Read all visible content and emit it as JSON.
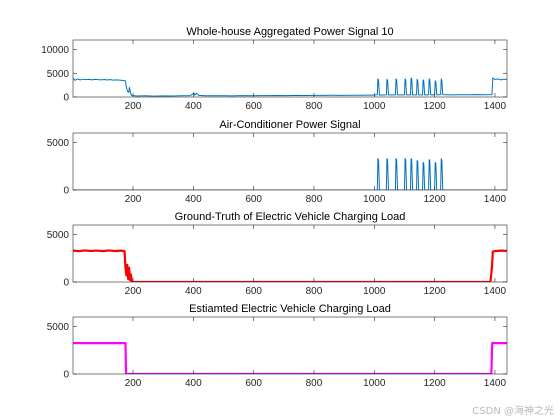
{
  "chart_data": [
    {
      "type": "line",
      "title": "Whole-house Aggregated Power Signal 10",
      "xlim": [
        1,
        1440
      ],
      "ylim": [
        0,
        12000
      ],
      "xticks": [
        200,
        400,
        600,
        800,
        1000,
        1200,
        1400
      ],
      "yticks": [
        0,
        5000,
        10000
      ],
      "grid": false,
      "series": [
        {
          "color": "#0072BD",
          "width": 1.0,
          "points": [
            [
              1,
              4000
            ],
            [
              8,
              3500
            ],
            [
              15,
              3800
            ],
            [
              25,
              3600
            ],
            [
              35,
              3750
            ],
            [
              45,
              3650
            ],
            [
              55,
              3700
            ],
            [
              65,
              3600
            ],
            [
              75,
              3720
            ],
            [
              85,
              3650
            ],
            [
              95,
              3600
            ],
            [
              105,
              3680
            ],
            [
              115,
              3580
            ],
            [
              125,
              3650
            ],
            [
              135,
              3560
            ],
            [
              145,
              3600
            ],
            [
              155,
              3550
            ],
            [
              165,
              3500
            ],
            [
              175,
              3400
            ],
            [
              178,
              2000
            ],
            [
              182,
              1200
            ],
            [
              186,
              1000
            ],
            [
              188,
              2000
            ],
            [
              192,
              800
            ],
            [
              195,
              400
            ],
            [
              200,
              300
            ],
            [
              215,
              200
            ],
            [
              240,
              260
            ],
            [
              270,
              180
            ],
            [
              300,
              240
            ],
            [
              330,
              200
            ],
            [
              360,
              260
            ],
            [
              390,
              300
            ],
            [
              400,
              700
            ],
            [
              402,
              900
            ],
            [
              404,
              400
            ],
            [
              410,
              800
            ],
            [
              418,
              350
            ],
            [
              440,
              260
            ],
            [
              470,
              250
            ],
            [
              500,
              270
            ],
            [
              530,
              240
            ],
            [
              560,
              280
            ],
            [
              590,
              260
            ],
            [
              620,
              300
            ],
            [
              650,
              280
            ],
            [
              680,
              320
            ],
            [
              710,
              300
            ],
            [
              740,
              330
            ],
            [
              770,
              310
            ],
            [
              800,
              340
            ],
            [
              830,
              330
            ],
            [
              860,
              360
            ],
            [
              890,
              350
            ],
            [
              920,
              380
            ],
            [
              950,
              360
            ],
            [
              980,
              400
            ],
            [
              1000,
              400
            ],
            [
              1010,
              500
            ],
            [
              1012,
              3800
            ],
            [
              1014,
              3600
            ],
            [
              1017,
              400
            ],
            [
              1040,
              450
            ],
            [
              1042,
              3700
            ],
            [
              1044,
              3500
            ],
            [
              1047,
              450
            ],
            [
              1070,
              450
            ],
            [
              1072,
              3800
            ],
            [
              1074,
              3600
            ],
            [
              1077,
              450
            ],
            [
              1100,
              450
            ],
            [
              1102,
              3800
            ],
            [
              1104,
              3600
            ],
            [
              1107,
              450
            ],
            [
              1120,
              450
            ],
            [
              1122,
              4000
            ],
            [
              1124,
              3800
            ],
            [
              1127,
              450
            ],
            [
              1140,
              450
            ],
            [
              1142,
              3700
            ],
            [
              1144,
              3500
            ],
            [
              1147,
              450
            ],
            [
              1160,
              450
            ],
            [
              1162,
              3600
            ],
            [
              1164,
              3400
            ],
            [
              1167,
              450
            ],
            [
              1180,
              450
            ],
            [
              1182,
              3800
            ],
            [
              1184,
              3600
            ],
            [
              1187,
              450
            ],
            [
              1200,
              450
            ],
            [
              1202,
              3400
            ],
            [
              1204,
              3200
            ],
            [
              1207,
              450
            ],
            [
              1220,
              500
            ],
            [
              1222,
              3800
            ],
            [
              1224,
              3500
            ],
            [
              1227,
              500
            ],
            [
              1250,
              450
            ],
            [
              1280,
              480
            ],
            [
              1310,
              460
            ],
            [
              1340,
              500
            ],
            [
              1370,
              480
            ],
            [
              1390,
              500
            ],
            [
              1393,
              4000
            ],
            [
              1400,
              3700
            ],
            [
              1410,
              3800
            ],
            [
              1420,
              3600
            ],
            [
              1430,
              3750
            ],
            [
              1440,
              3700
            ]
          ]
        }
      ]
    },
    {
      "type": "line",
      "title": "Air-Conditioner Power Signal",
      "xlim": [
        1,
        1440
      ],
      "ylim": [
        0,
        6000
      ],
      "xticks": [
        200,
        400,
        600,
        800,
        1000,
        1200,
        1400
      ],
      "yticks": [
        0,
        5000
      ],
      "grid": false,
      "series": [
        {
          "color": "#0072BD",
          "width": 1.0,
          "points": [
            [
              1,
              0
            ],
            [
              1010,
              0
            ],
            [
              1012,
              3300
            ],
            [
              1014,
              3200
            ],
            [
              1017,
              0
            ],
            [
              1040,
              0
            ],
            [
              1042,
              3300
            ],
            [
              1044,
              3200
            ],
            [
              1047,
              0
            ],
            [
              1070,
              0
            ],
            [
              1072,
              3300
            ],
            [
              1074,
              3200
            ],
            [
              1077,
              0
            ],
            [
              1100,
              0
            ],
            [
              1102,
              3300
            ],
            [
              1104,
              3200
            ],
            [
              1107,
              0
            ],
            [
              1120,
              0
            ],
            [
              1122,
              3300
            ],
            [
              1124,
              3200
            ],
            [
              1127,
              0
            ],
            [
              1140,
              0
            ],
            [
              1142,
              3100
            ],
            [
              1144,
              3000
            ],
            [
              1147,
              0
            ],
            [
              1160,
              0
            ],
            [
              1162,
              2900
            ],
            [
              1164,
              2800
            ],
            [
              1167,
              0
            ],
            [
              1180,
              0
            ],
            [
              1182,
              3200
            ],
            [
              1184,
              3100
            ],
            [
              1187,
              0
            ],
            [
              1200,
              0
            ],
            [
              1202,
              2900
            ],
            [
              1204,
              2800
            ],
            [
              1207,
              0
            ],
            [
              1220,
              0
            ],
            [
              1222,
              3300
            ],
            [
              1224,
              3100
            ],
            [
              1227,
              0
            ],
            [
              1440,
              0
            ]
          ]
        }
      ]
    },
    {
      "type": "line",
      "title": "Ground-Truth of Electric Vehicle Charging Load",
      "xlim": [
        1,
        1440
      ],
      "ylim": [
        0,
        6000
      ],
      "xticks": [
        200,
        400,
        600,
        800,
        1000,
        1200,
        1400
      ],
      "yticks": [
        0,
        5000
      ],
      "grid": false,
      "series": [
        {
          "color": "#FF0000",
          "width": 2.2,
          "points": [
            [
              1,
              3300
            ],
            [
              20,
              3250
            ],
            [
              40,
              3320
            ],
            [
              60,
              3260
            ],
            [
              80,
              3310
            ],
            [
              100,
              3250
            ],
            [
              120,
              3320
            ],
            [
              140,
              3260
            ],
            [
              160,
              3300
            ],
            [
              172,
              3250
            ],
            [
              175,
              1500
            ],
            [
              178,
              700
            ],
            [
              181,
              1800
            ],
            [
              184,
              300
            ],
            [
              187,
              1500
            ],
            [
              190,
              200
            ],
            [
              193,
              800
            ],
            [
              196,
              0
            ],
            [
              210,
              0
            ],
            [
              600,
              0
            ],
            [
              1000,
              0
            ],
            [
              1380,
              0
            ],
            [
              1385,
              0
            ],
            [
              1390,
              1500
            ],
            [
              1393,
              3200
            ],
            [
              1400,
              3250
            ],
            [
              1420,
              3300
            ],
            [
              1440,
              3280
            ]
          ]
        }
      ]
    },
    {
      "type": "line",
      "title": "Estiamted Electric Vehicle Charging Load",
      "xlim": [
        1,
        1440
      ],
      "ylim": [
        0,
        6000
      ],
      "xticks": [
        200,
        400,
        600,
        800,
        1000,
        1200,
        1400
      ],
      "yticks": [
        0,
        5000
      ],
      "grid": false,
      "series": [
        {
          "color": "#FF00FF",
          "width": 2.2,
          "points": [
            [
              1,
              3250
            ],
            [
              175,
              3250
            ],
            [
              177,
              0
            ],
            [
              1388,
              0
            ],
            [
              1391,
              3250
            ],
            [
              1440,
              3250
            ]
          ]
        }
      ]
    }
  ],
  "watermark": "CSDN @海神之光"
}
